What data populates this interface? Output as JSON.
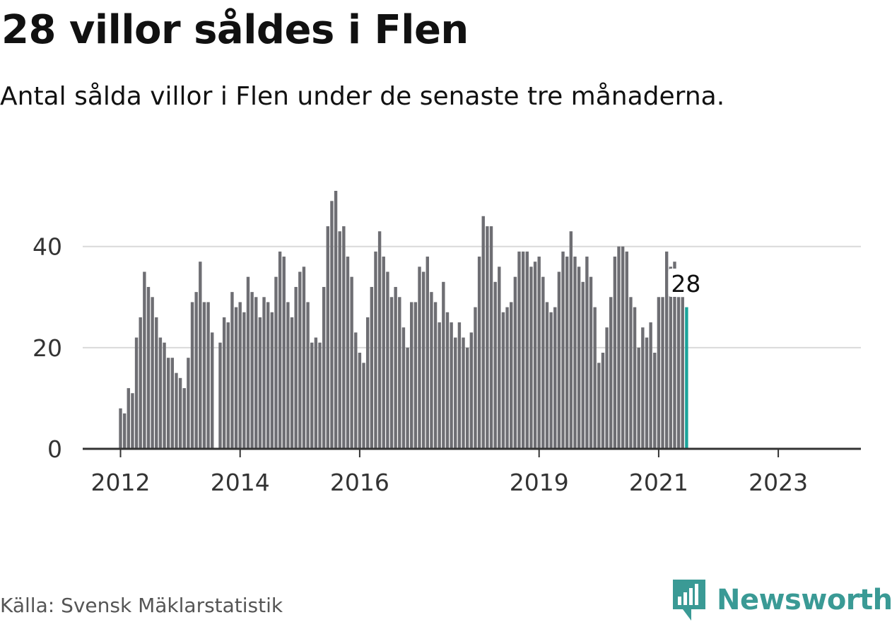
{
  "title": "28 villor såldes i Flen",
  "subtitle": "Antal sålda villor i Flen under de senaste tre månaderna.",
  "source": "Källa: Svensk Mäklarstatistik",
  "brand": {
    "name": "Newsworthy",
    "icon": "newsworthy-logo-icon",
    "color": "#3a9a95"
  },
  "colors": {
    "bar": "#6e6e73",
    "highlight": "#1aa39a",
    "grid": "#d9d9d9",
    "axis": "#333333",
    "text": "#333333"
  },
  "chart_data": {
    "type": "bar",
    "x_axis": {
      "tick_labels": [
        "2012",
        "2014",
        "2016",
        "2019",
        "2021",
        "2023"
      ]
    },
    "y_axis": {
      "tick_labels": [
        "0",
        "20",
        "40"
      ],
      "ylim": [
        0,
        54
      ]
    },
    "grid": true,
    "highlight_label": "28",
    "values": [
      8,
      7,
      12,
      11,
      22,
      26,
      35,
      32,
      30,
      26,
      22,
      21,
      18,
      18,
      15,
      14,
      12,
      18,
      29,
      31,
      37,
      29,
      29,
      23,
      null,
      21,
      26,
      25,
      31,
      28,
      29,
      27,
      34,
      31,
      30,
      26,
      30,
      29,
      27,
      34,
      39,
      38,
      29,
      26,
      32,
      35,
      36,
      29,
      21,
      22,
      21,
      32,
      44,
      49,
      51,
      43,
      44,
      38,
      34,
      23,
      19,
      17,
      26,
      32,
      39,
      43,
      38,
      35,
      30,
      32,
      30,
      24,
      20,
      29,
      29,
      36,
      35,
      38,
      31,
      29,
      25,
      33,
      27,
      25,
      22,
      25,
      22,
      20,
      23,
      28,
      38,
      46,
      44,
      44,
      33,
      36,
      27,
      28,
      29,
      34,
      39,
      39,
      39,
      36,
      37,
      38,
      34,
      29,
      27,
      28,
      35,
      39,
      38,
      43,
      38,
      36,
      33,
      38,
      34,
      28,
      17,
      19,
      24,
      30,
      38,
      40,
      40,
      39,
      30,
      28,
      20,
      24,
      22,
      25,
      19,
      30,
      30,
      39,
      36,
      37,
      30,
      30,
      28
    ]
  }
}
